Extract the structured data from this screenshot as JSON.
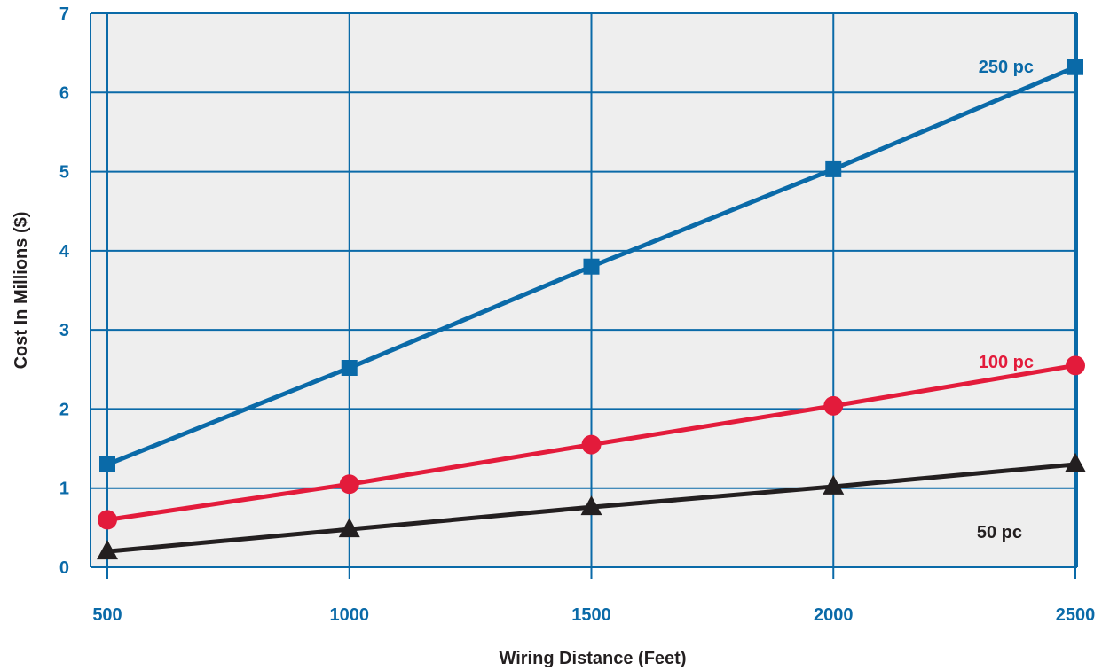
{
  "chart_data": {
    "type": "line",
    "xlabel": "Wiring Distance (Feet)",
    "ylabel": "Cost In Millions ($)",
    "x": [
      500,
      1000,
      1500,
      2000,
      2500
    ],
    "x_ticks": [
      "500",
      "1000",
      "1500",
      "2000",
      "2500"
    ],
    "y_ticks": [
      "0",
      "1",
      "2",
      "3",
      "4",
      "5",
      "6",
      "7"
    ],
    "xlim": [
      500,
      2500
    ],
    "ylim": [
      0,
      7
    ],
    "grid": true,
    "plot_background": "#eeeeee",
    "grid_color": "#0a6aa8",
    "tick_color": "#0a6aa8",
    "series": [
      {
        "name": "250 pc",
        "color": "#0a6aa8",
        "marker": "square",
        "values": [
          1.3,
          2.52,
          3.8,
          5.03,
          6.32
        ]
      },
      {
        "name": "100 pc",
        "color": "#e31b3b",
        "marker": "circle",
        "values": [
          0.6,
          1.05,
          1.55,
          2.04,
          2.55
        ]
      },
      {
        "name": "50 pc",
        "color": "#231f20",
        "marker": "triangle",
        "values": [
          0.2,
          0.48,
          0.76,
          1.02,
          1.3
        ]
      }
    ]
  }
}
